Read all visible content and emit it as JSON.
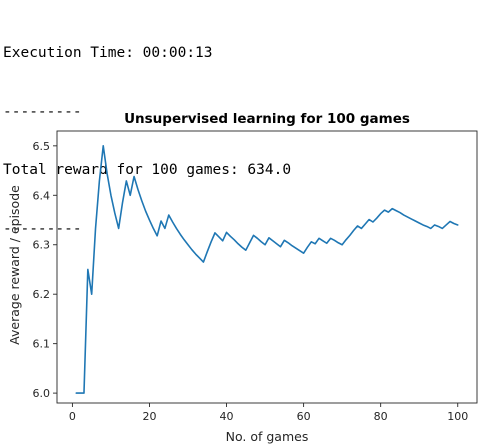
{
  "console": {
    "lines": [
      "Execution Time: 00:00:13",
      "---------",
      "Total reward for 100 games: 634.0",
      "---------"
    ]
  },
  "chart_data": {
    "type": "line",
    "title": "Unsupervised learning for 100 games",
    "xlabel": "No. of games",
    "ylabel": "Average reward / episode",
    "xlim": [
      -4,
      105
    ],
    "ylim": [
      5.98,
      6.53
    ],
    "xticks": [
      0,
      20,
      40,
      60,
      80,
      100
    ],
    "yticks": [
      6.0,
      6.1,
      6.2,
      6.3,
      6.4,
      6.5
    ],
    "grid": false,
    "color": "#1f77b4",
    "series": [
      {
        "x": [
          1,
          2,
          3,
          4,
          5,
          6,
          7,
          8,
          9,
          10,
          11,
          12,
          13,
          14,
          15,
          16,
          17,
          18,
          19,
          20,
          21,
          22,
          23,
          24,
          25,
          26,
          27,
          28,
          29,
          30,
          31,
          32,
          33,
          34,
          35,
          36,
          37,
          38,
          39,
          40,
          41,
          42,
          43,
          44,
          45,
          46,
          47,
          48,
          49,
          50,
          51,
          52,
          53,
          54,
          55,
          56,
          57,
          58,
          59,
          60,
          61,
          62,
          63,
          64,
          65,
          66,
          67,
          68,
          69,
          70,
          71,
          72,
          73,
          74,
          75,
          76,
          77,
          78,
          79,
          80,
          81,
          82,
          83,
          84,
          85,
          86,
          87,
          88,
          89,
          90,
          91,
          92,
          93,
          94,
          95,
          96,
          97,
          98,
          99,
          100
        ],
        "y": [
          6.0,
          6.0,
          6.0,
          6.25,
          6.2,
          6.333,
          6.429,
          6.5,
          6.444,
          6.4,
          6.364,
          6.333,
          6.385,
          6.429,
          6.4,
          6.438,
          6.412,
          6.389,
          6.368,
          6.35,
          6.333,
          6.318,
          6.348,
          6.333,
          6.36,
          6.346,
          6.333,
          6.321,
          6.31,
          6.3,
          6.29,
          6.281,
          6.273,
          6.265,
          6.286,
          6.306,
          6.324,
          6.316,
          6.308,
          6.325,
          6.317,
          6.31,
          6.302,
          6.295,
          6.289,
          6.304,
          6.319,
          6.313,
          6.306,
          6.3,
          6.314,
          6.308,
          6.302,
          6.296,
          6.309,
          6.304,
          6.298,
          6.293,
          6.288,
          6.283,
          6.295,
          6.306,
          6.302,
          6.313,
          6.308,
          6.303,
          6.313,
          6.309,
          6.304,
          6.3,
          6.31,
          6.319,
          6.329,
          6.338,
          6.333,
          6.342,
          6.351,
          6.346,
          6.354,
          6.363,
          6.37,
          6.366,
          6.373,
          6.369,
          6.365,
          6.36,
          6.356,
          6.352,
          6.348,
          6.344,
          6.34,
          6.337,
          6.333,
          6.34,
          6.337,
          6.333,
          6.34,
          6.347,
          6.343,
          6.34
        ]
      }
    ]
  }
}
